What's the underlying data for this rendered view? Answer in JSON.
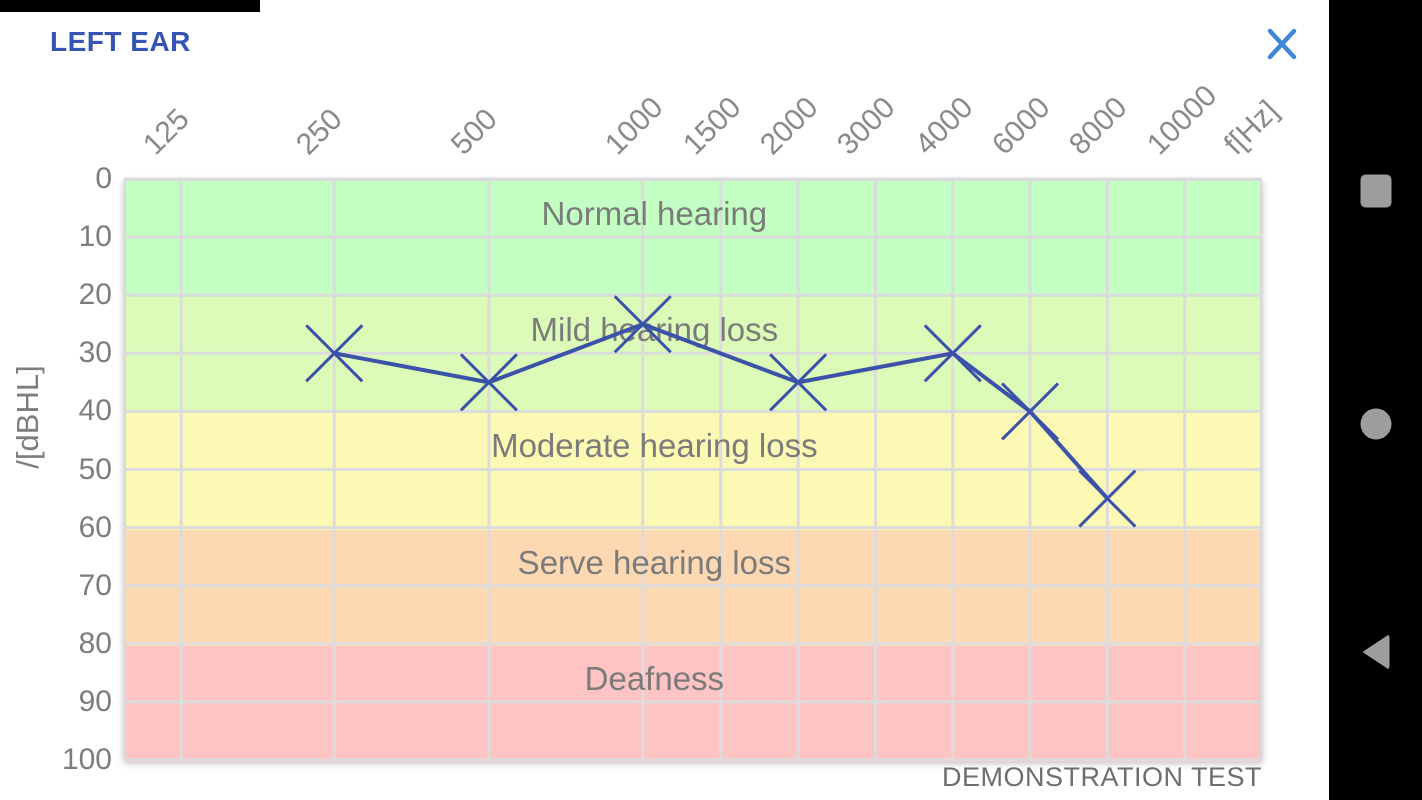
{
  "header": {
    "title": "LEFT EAR",
    "close_icon": "close-x"
  },
  "footer": {
    "note": "DEMONSTRATION TEST"
  },
  "nav_bar": {
    "buttons": [
      {
        "name": "recents",
        "glyph": "square"
      },
      {
        "name": "home",
        "glyph": "circle"
      },
      {
        "name": "back",
        "glyph": "triangle-left"
      }
    ]
  },
  "colors": {
    "title_blue": "#3554b3",
    "close_blue": "#3e87d8",
    "series_blue": "#3a52a7",
    "grid_gray": "#dcdcdc",
    "tick_gray": "#8a8a8a",
    "nav_icon_gray": "#9d9d9d"
  },
  "chart_data": {
    "type": "line",
    "title": "",
    "x_axis_unit_label": "f[Hz]",
    "y_axis_label": "/[dBHL]",
    "x_ticks": [
      "125",
      "250",
      "500",
      "1000",
      "1500",
      "2000",
      "3000",
      "4000",
      "6000",
      "8000",
      "10000"
    ],
    "y_ticks": [
      0,
      10,
      20,
      30,
      40,
      50,
      60,
      70,
      80,
      90,
      100
    ],
    "ylim": [
      0,
      100
    ],
    "y_axis_reversed": true,
    "grid": true,
    "series": [
      {
        "name": "left-ear-threshold",
        "marker": "x",
        "color": "#3a52a7",
        "x": [
          250,
          500,
          1000,
          2000,
          4000,
          6000,
          8000
        ],
        "y": [
          30,
          35,
          25,
          35,
          30,
          40,
          55
        ]
      }
    ],
    "zones": [
      {
        "label": "Normal hearing",
        "from": 0,
        "to": 20,
        "color": "#c3fec3"
      },
      {
        "label": "Mild hearing loss",
        "from": 20,
        "to": 40,
        "color": "#ddfbb8"
      },
      {
        "label": "Moderate hearing loss",
        "from": 40,
        "to": 60,
        "color": "#fbf9b4"
      },
      {
        "label": "Serve hearing loss",
        "from": 60,
        "to": 80,
        "color": "#fcd9b3"
      },
      {
        "label": "Deafness",
        "from": 80,
        "to": 100,
        "color": "#fec3c3"
      }
    ]
  }
}
